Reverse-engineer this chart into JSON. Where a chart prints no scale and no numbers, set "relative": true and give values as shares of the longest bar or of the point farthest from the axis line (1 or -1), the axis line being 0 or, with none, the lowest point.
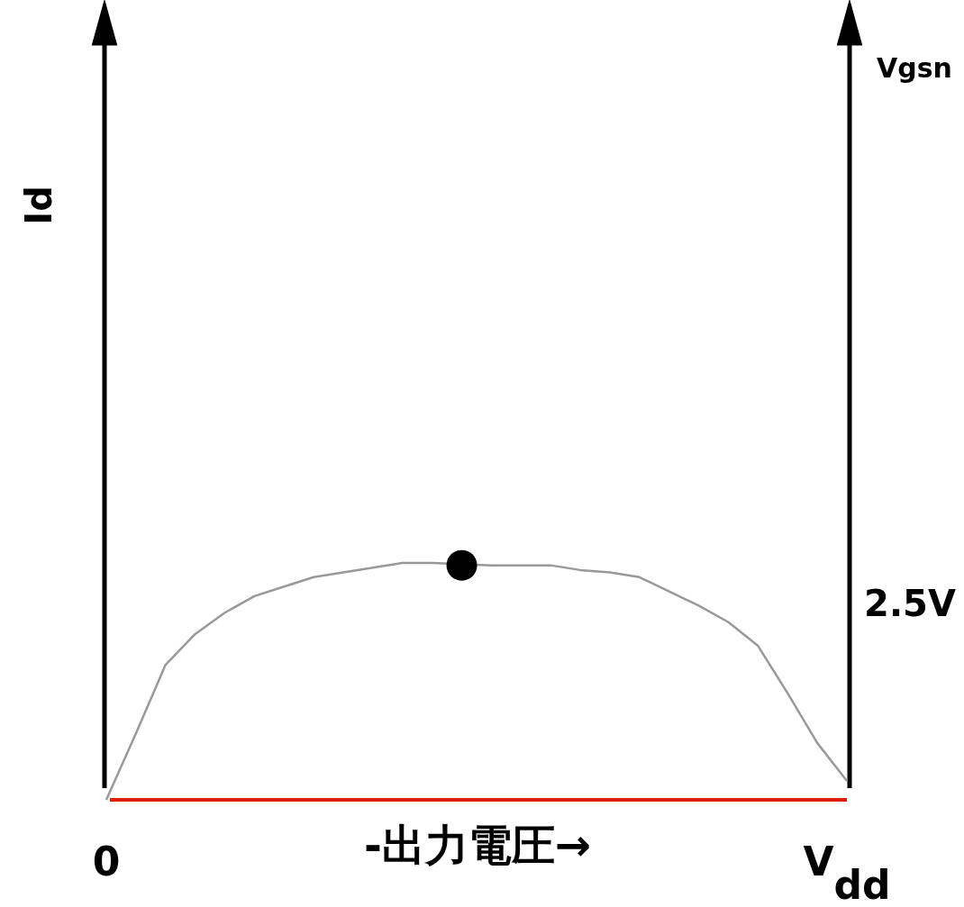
{
  "chart_data": {
    "type": "line",
    "relative": true,
    "xlabel": "-出力電圧→",
    "annotations": [
      "Id",
      "Vgsn",
      "2.5V"
    ],
    "categories": [
      "0",
      null,
      null,
      null,
      null,
      null,
      null,
      null,
      null,
      null,
      null,
      null,
      null,
      null,
      null,
      null,
      null,
      null,
      null,
      null,
      null,
      null,
      null,
      null,
      null,
      "V$_{dd}$"
    ],
    "series": [
      {
        "values": [
          0,
          0.28,
          0.57,
          0.7,
          0.79,
          0.86,
          0.9,
          0.94,
          0.96,
          0.98,
          1,
          1,
          null,
          0.99,
          0.99,
          0.99,
          0.97,
          0.96,
          0.94,
          0.88,
          0.82,
          0.75,
          0.65,
          0.45,
          0.24,
          0.08
        ],
        "color": "#999999"
      },
      {
        "type": "scatter",
        "marker": "circle",
        "values": [
          null,
          null,
          null,
          null,
          null,
          null,
          null,
          null,
          null,
          null,
          null,
          null,
          0.99,
          null,
          null,
          null,
          null,
          null,
          null,
          null,
          null,
          null,
          null,
          null,
          null,
          null
        ],
        "color": "#000000"
      }
    ]
  }
}
